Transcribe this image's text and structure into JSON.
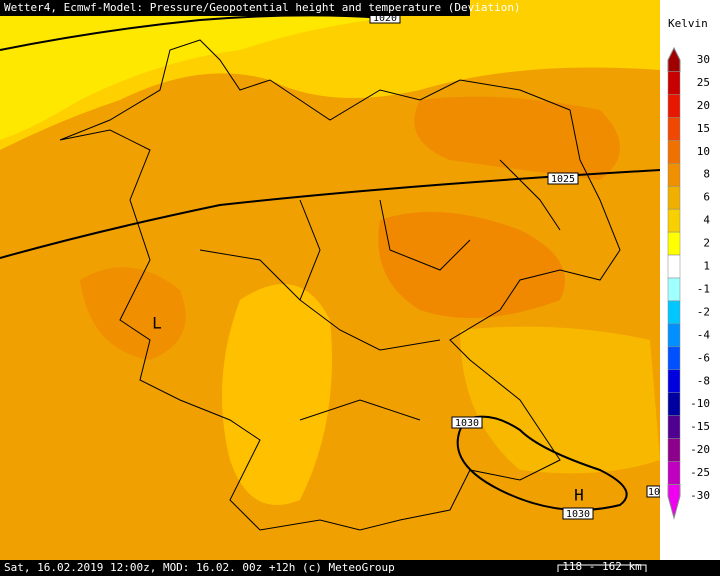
{
  "header": {
    "title": "Wetter4, Ecmwf-Model: Pressure/Geopotential height and temperature (Deviation)"
  },
  "legend": {
    "unit": "Kelvin",
    "levels": [
      30,
      25,
      20,
      15,
      10,
      8,
      6,
      4,
      2,
      1,
      -1,
      -2,
      -4,
      -6,
      -8,
      -10,
      -15,
      -20,
      -25,
      -30
    ],
    "colors": [
      "#a00000",
      "#c80000",
      "#e81800",
      "#f04800",
      "#f07000",
      "#f09000",
      "#f0b000",
      "#f8d000",
      "#ffff00",
      "#ffffff",
      "#a0ffff",
      "#00c8ff",
      "#0090ff",
      "#0050ff",
      "#0000e0",
      "#0000a0",
      "#500090",
      "#8c008c",
      "#c000c0",
      "#f000f0"
    ]
  },
  "map": {
    "isobars": [
      "1020",
      "1025",
      "1030",
      "1030",
      "10"
    ],
    "pressure_centers": [
      "L",
      "H"
    ]
  },
  "footer": {
    "info": "Sat, 16.02.2019 12:00z, MOD: 16.02. 00z +12h (c) MeteoGroup",
    "scale": "118 - 162 km"
  }
}
